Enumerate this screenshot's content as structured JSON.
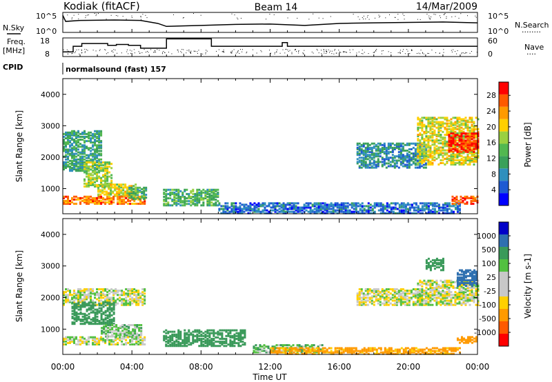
{
  "header": {
    "station": "Kodiak (fitACF)",
    "beam": "Beam 14",
    "date": "14/Mar/2009"
  },
  "strip_labels": {
    "nsky": "N.Sky",
    "nsearch": "N.Search",
    "nsearch_dots": "........",
    "freq_line1": "Freq.",
    "freq_line2": "[MHz]",
    "nave": "Nave",
    "nave_dots": "....",
    "cpid": "CPID",
    "cpid_value": "normalsound (fast) 157"
  },
  "colors": {
    "power_scale": [
      "#0000ff",
      "#1e5ad2",
      "#2f8fbd",
      "#3aa05a",
      "#52b850",
      "#9ad040",
      "#ffd000",
      "#ff9a00",
      "#ff5a00",
      "#ff0000"
    ],
    "velocity_scale": [
      "#ff0000",
      "#ff5a00",
      "#ff9a00",
      "#ffd000",
      "#c8c8c8",
      "#c8c8c8",
      "#52c040",
      "#3a9a5a",
      "#2f70b0",
      "#0000c8"
    ]
  },
  "chart_data": [
    {
      "type": "line",
      "title": "",
      "xlabel": "",
      "ylabel": "N.Sky",
      "y2label": "N.Search",
      "y_ticks": [
        "10^5",
        "10^0"
      ],
      "y2_ticks": [
        "10^5",
        "10^0"
      ],
      "xlim": [
        "00:00",
        "24:00"
      ],
      "series": [
        {
          "x": [
            "00:00",
            "00:10",
            "01:00",
            "03:00",
            "04:30",
            "05:30",
            "06:00",
            "08:00",
            "10:00",
            "12:00",
            "14:00",
            "16:00",
            "18:00",
            "20:00",
            "22:00",
            "24:00"
          ],
          "y_fraction": [
            0.85,
            0.55,
            0.6,
            0.62,
            0.6,
            0.45,
            0.3,
            0.35,
            0.4,
            0.42,
            0.35,
            0.45,
            0.48,
            0.5,
            0.52,
            0.48
          ]
        }
      ]
    },
    {
      "type": "line",
      "title": "",
      "xlabel": "",
      "ylabel": "Freq. [MHz]",
      "y2label": "Nave",
      "y_ticks": [
        "18",
        "8"
      ],
      "y2_ticks": [
        "60",
        "0"
      ],
      "ylim": [
        8,
        18
      ],
      "y2lim": [
        0,
        60
      ],
      "series": [
        {
          "name": "Freq. [MHz]",
          "x": [
            0.0,
            0.6,
            1.1,
            1.9,
            2.6,
            3.1,
            3.8,
            4.5,
            5.0,
            6.0,
            8.3,
            8.6,
            11.5,
            12.0,
            12.6,
            12.7,
            13.0,
            24.0
          ],
          "y": [
            10.5,
            13.5,
            15.0,
            15.0,
            14.0,
            14.5,
            14.0,
            12.5,
            12.5,
            17.5,
            17.5,
            13.5,
            13.5,
            13.5,
            13.5,
            15.5,
            13.5,
            13.5
          ]
        },
        {
          "name": "Nave",
          "x": [
            "00:00",
            "24:00"
          ],
          "y": [
            18,
            18
          ]
        }
      ]
    },
    {
      "type": "heatmap",
      "title": "",
      "xlabel": "",
      "ylabel": "Slant Range [km]",
      "x_ticks": [
        "00:00",
        "04:00",
        "08:00",
        "12:00",
        "16:00",
        "20:00",
        "00:00"
      ],
      "y_ticks": [
        1000,
        2000,
        3000,
        4000
      ],
      "ylim": [
        200,
        4500
      ],
      "colorbar": {
        "label": "Power [dB]",
        "ticks": [
          4,
          8,
          12,
          16,
          20,
          24,
          28
        ],
        "range": [
          0,
          30
        ]
      },
      "regions": [
        {
          "t": [
            0.0,
            2.2
          ],
          "r": [
            1600,
            2900
          ],
          "value": 10
        },
        {
          "t": [
            1.2,
            2.8
          ],
          "r": [
            1100,
            1900
          ],
          "value": 16
        },
        {
          "t": [
            2.0,
            4.2
          ],
          "r": [
            800,
            1200
          ],
          "value": 18
        },
        {
          "t": [
            0.0,
            4.8
          ],
          "r": [
            550,
            800
          ],
          "value": 24
        },
        {
          "t": [
            3.8,
            4.8
          ],
          "r": [
            700,
            1100
          ],
          "value": 12
        },
        {
          "t": [
            5.8,
            9.0
          ],
          "r": [
            500,
            1000
          ],
          "value": 12
        },
        {
          "t": [
            9.0,
            23.0
          ],
          "r": [
            250,
            600
          ],
          "value": 6
        },
        {
          "t": [
            17.0,
            21.0
          ],
          "r": [
            1700,
            2500
          ],
          "value": 8
        },
        {
          "t": [
            20.5,
            24.0
          ],
          "r": [
            1800,
            3300
          ],
          "value": 18
        },
        {
          "t": [
            22.3,
            24.0
          ],
          "r": [
            2200,
            2800
          ],
          "value": 28
        },
        {
          "t": [
            22.5,
            24.0
          ],
          "r": [
            550,
            800
          ],
          "value": 26
        }
      ]
    },
    {
      "type": "heatmap",
      "title": "",
      "xlabel": "Time UT",
      "ylabel": "Slant Range [km]",
      "x_ticks": [
        "00:00",
        "04:00",
        "08:00",
        "12:00",
        "16:00",
        "20:00",
        "00:00"
      ],
      "y_ticks": [
        1000,
        2000,
        3000,
        4000
      ],
      "ylim": [
        200,
        4500
      ],
      "colorbar": {
        "label": "Velocity [m s-1]",
        "ticks": [
          1000,
          500,
          100,
          25,
          -25,
          -100,
          -500,
          -1000
        ]
      },
      "regions": [
        {
          "t": [
            0.0,
            4.8
          ],
          "r": [
            1800,
            2300
          ],
          "value": 0
        },
        {
          "t": [
            0.5,
            3.0
          ],
          "r": [
            1200,
            1900
          ],
          "value": 200
        },
        {
          "t": [
            2.2,
            4.5
          ],
          "r": [
            800,
            1200
          ],
          "value": 50
        },
        {
          "t": [
            0.0,
            4.8
          ],
          "r": [
            550,
            800
          ],
          "value": 0
        },
        {
          "t": [
            5.8,
            10.5
          ],
          "r": [
            500,
            1000
          ],
          "value": 300
        },
        {
          "t": [
            11.0,
            15.0
          ],
          "r": [
            300,
            550
          ],
          "value": 80
        },
        {
          "t": [
            12.0,
            23.0
          ],
          "r": [
            250,
            450
          ],
          "value": -150
        },
        {
          "t": [
            17.0,
            21.0
          ],
          "r": [
            1800,
            2300
          ],
          "value": 0
        },
        {
          "t": [
            20.5,
            24.0
          ],
          "r": [
            1800,
            2600
          ],
          "value": 0
        },
        {
          "t": [
            21.0,
            22.0
          ],
          "r": [
            2900,
            3300
          ],
          "value": 300
        },
        {
          "t": [
            22.8,
            24.0
          ],
          "r": [
            2400,
            2900
          ],
          "value": 800
        },
        {
          "t": [
            22.8,
            24.0
          ],
          "r": [
            600,
            800
          ],
          "value": -300
        }
      ]
    }
  ]
}
